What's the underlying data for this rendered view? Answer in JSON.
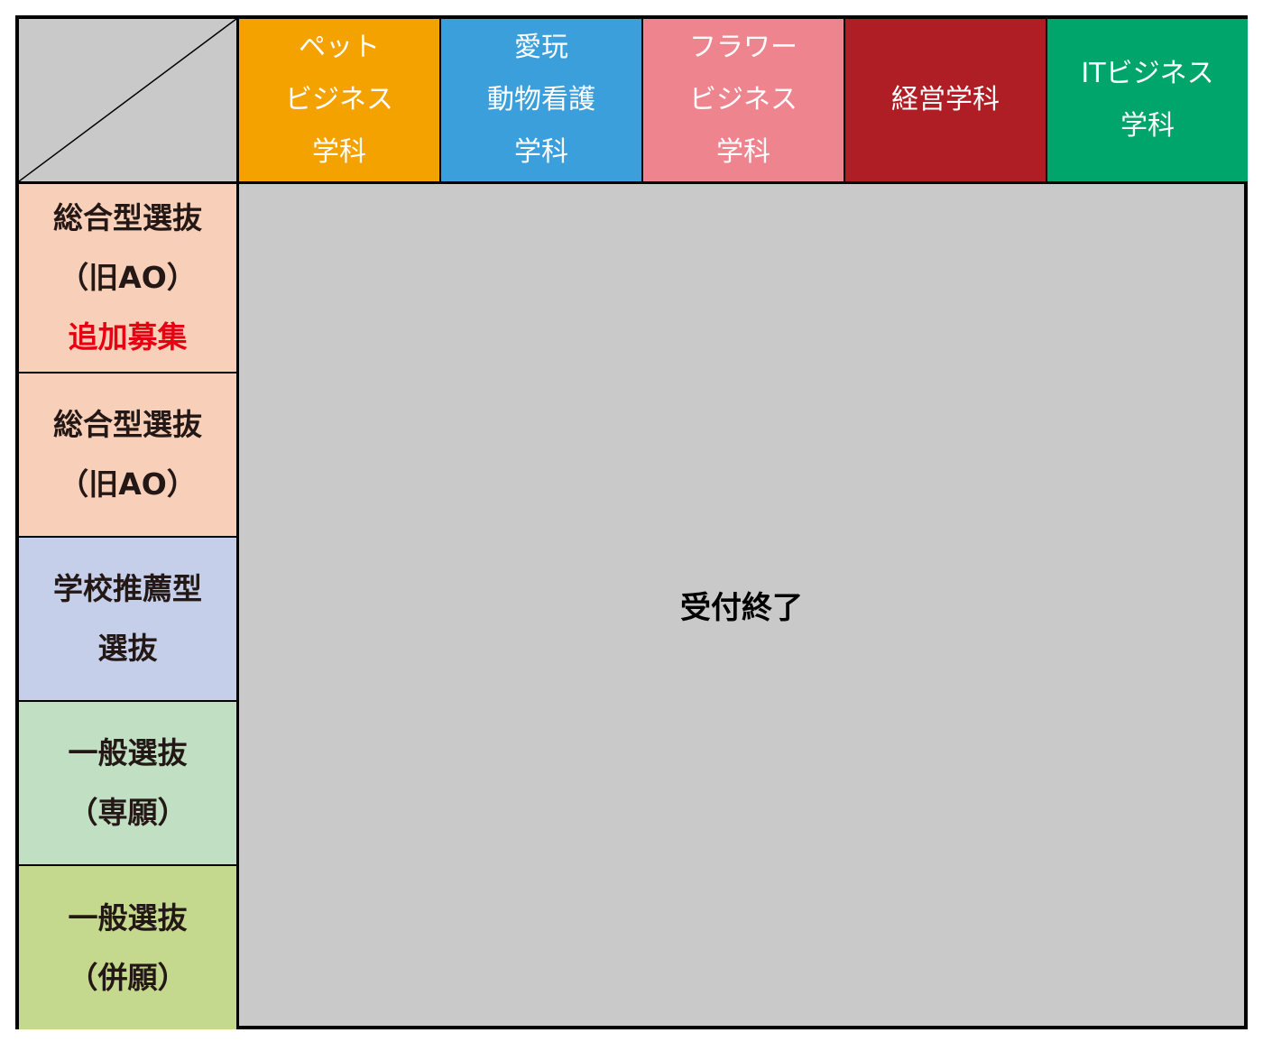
{
  "departments": [
    {
      "lines": [
        "ペット",
        "ビジネス",
        "学科"
      ],
      "color": "#F3A200"
    },
    {
      "lines": [
        "愛玩",
        "動物看護",
        "学科"
      ],
      "color": "#3A9FDB"
    },
    {
      "lines": [
        "フラワー",
        "ビジネス",
        "学科"
      ],
      "color": "#EE858E"
    },
    {
      "lines": [
        "経営学科"
      ],
      "color": "#AE1E24"
    },
    {
      "lines": [
        "ITビジネス",
        "学科"
      ],
      "color": "#00A56B"
    }
  ],
  "selections": [
    {
      "lines": [
        "総合型選抜",
        "（旧AO）"
      ],
      "note": "追加募集",
      "color": "#F8CFB8"
    },
    {
      "lines": [
        "総合型選抜",
        "（旧AO）"
      ],
      "color": "#F8CFB8"
    },
    {
      "lines": [
        "学校推薦型",
        "選抜"
      ],
      "color": "#C5CFEA"
    },
    {
      "lines": [
        "一般選抜",
        "（専願）"
      ],
      "color": "#C0DFC3"
    },
    {
      "lines": [
        "一般選抜",
        "（併願）"
      ],
      "color": "#C4D98D"
    }
  ],
  "status": "受付終了",
  "note_color": "#E60012"
}
